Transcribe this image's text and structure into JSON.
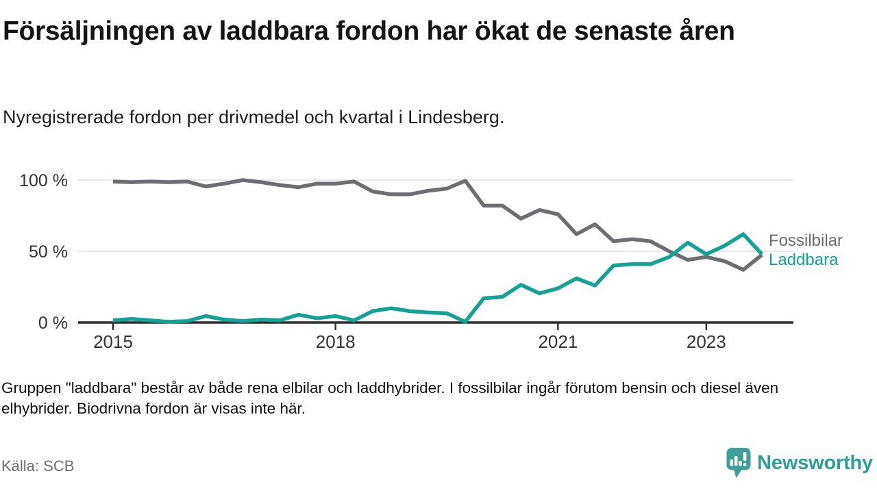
{
  "header": {
    "title": "Försäljningen av laddbara fordon har ökat de senaste åren",
    "subtitle": "Nyregistrerade fordon per drivmedel och kvartal i Lindesberg."
  },
  "footer": {
    "note": "Gruppen \"laddbara\" består av både rena elbilar och laddhybrider. I fossilbilar ingår förutom bensin och diesel även elhybrider. Biodrivna fordon är visas inte här.",
    "source": "Källa: SCB",
    "brand": "Newsworthy"
  },
  "colors": {
    "fossil_line": "#6d6d72",
    "laddbara_line": "#13a295",
    "axis": "#2e2e2e",
    "gridline": "#dadada",
    "tick_text": "#333333",
    "brand_teal": "#2e9e9b"
  },
  "chart_data": {
    "type": "line",
    "x": [
      "2015 Q1",
      "2015 Q2",
      "2015 Q3",
      "2015 Q4",
      "2016 Q1",
      "2016 Q2",
      "2016 Q3",
      "2016 Q4",
      "2017 Q1",
      "2017 Q2",
      "2017 Q3",
      "2017 Q4",
      "2018 Q1",
      "2018 Q2",
      "2018 Q3",
      "2018 Q4",
      "2019 Q1",
      "2019 Q2",
      "2019 Q3",
      "2019 Q4",
      "2020 Q1",
      "2020 Q2",
      "2020 Q3",
      "2020 Q4",
      "2021 Q1",
      "2021 Q2",
      "2021 Q3",
      "2021 Q4",
      "2022 Q1",
      "2022 Q2",
      "2022 Q3",
      "2022 Q4",
      "2023 Q1",
      "2023 Q2",
      "2023 Q3",
      "2023 Q4"
    ],
    "series": [
      {
        "name": "Fossilbilar",
        "color": "#6d6d72",
        "values": [
          99,
          98.5,
          99,
          98.5,
          99,
          95.5,
          97.5,
          100,
          98.5,
          96.5,
          95,
          97.5,
          97.5,
          99,
          92,
          90,
          90,
          92.5,
          94,
          99.5,
          82,
          82,
          73,
          79,
          76,
          62,
          69,
          57,
          58.5,
          57,
          50,
          44,
          46,
          43,
          37,
          47.5
        ]
      },
      {
        "name": "Laddbara",
        "color": "#13a295",
        "values": [
          1.5,
          2.5,
          1.5,
          0.5,
          1,
          4.5,
          2,
          1,
          2,
          1.5,
          5.5,
          3,
          4.5,
          1.5,
          8,
          10,
          8,
          7,
          6.5,
          0.5,
          17,
          18,
          26.5,
          20.5,
          24,
          31,
          26,
          40,
          41,
          41,
          46,
          56,
          48,
          54,
          62,
          48
        ]
      }
    ],
    "x_ticks": [
      {
        "label": "2015",
        "index": 0
      },
      {
        "label": "2018",
        "index": 12
      },
      {
        "label": "2021",
        "index": 24
      },
      {
        "label": "2023",
        "index": 32
      }
    ],
    "y_ticks": [
      {
        "label": "100 %",
        "value": 100
      },
      {
        "label": "50 %",
        "value": 50
      },
      {
        "label": "0 %",
        "value": 0
      }
    ],
    "ylim": [
      0,
      100
    ],
    "xlabel": "",
    "ylabel": "",
    "grid": "horizontal",
    "legend_position": "right-of-line-ends"
  }
}
